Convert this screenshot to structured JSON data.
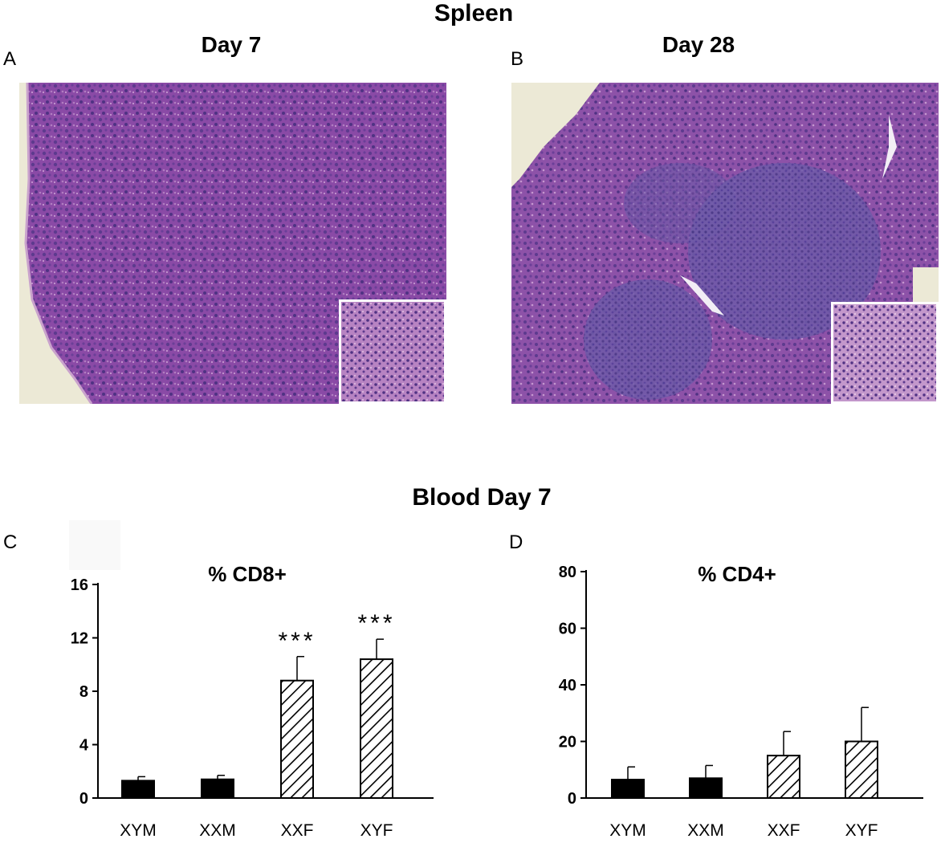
{
  "figure": {
    "spleen_title": "Spleen",
    "blood_title": "Blood Day 7"
  },
  "panels": {
    "A": {
      "letter": "A",
      "title": "Day 7"
    },
    "B": {
      "letter": "B",
      "title": "Day 28"
    },
    "C": {
      "letter": "C"
    },
    "D": {
      "letter": "D"
    }
  },
  "colors": {
    "tissue": "#8a4aa6",
    "tissue_dark": "#5d3a8e",
    "background_cream": "#ece9d6",
    "bar_black": "#000000"
  },
  "chart_data": [
    {
      "type": "bar",
      "panel": "C",
      "title": "% CD8+",
      "categories": [
        "XYM",
        "XXM",
        "XXF",
        "XYF"
      ],
      "values": [
        1.3,
        1.4,
        8.8,
        10.4
      ],
      "errors": [
        0.3,
        0.3,
        1.8,
        1.5
      ],
      "fills": [
        "solid",
        "solid",
        "hatched",
        "hatched"
      ],
      "significance": [
        "",
        "",
        "***",
        "***"
      ],
      "ylim": [
        0,
        16
      ],
      "yticks": [
        0,
        4,
        8,
        12,
        16
      ],
      "xlabel": "",
      "ylabel": "",
      "grid": false
    },
    {
      "type": "bar",
      "panel": "D",
      "title": "% CD4+",
      "categories": [
        "XYM",
        "XXM",
        "XXF",
        "XYF"
      ],
      "values": [
        6.5,
        7,
        15,
        20
      ],
      "errors": [
        4.5,
        4.5,
        8.5,
        12
      ],
      "fills": [
        "solid",
        "solid",
        "hatched",
        "hatched"
      ],
      "significance": [
        "",
        "",
        "",
        ""
      ],
      "ylim": [
        0,
        80
      ],
      "yticks": [
        0,
        20,
        40,
        60,
        80
      ],
      "xlabel": "",
      "ylabel": "",
      "grid": false
    }
  ]
}
